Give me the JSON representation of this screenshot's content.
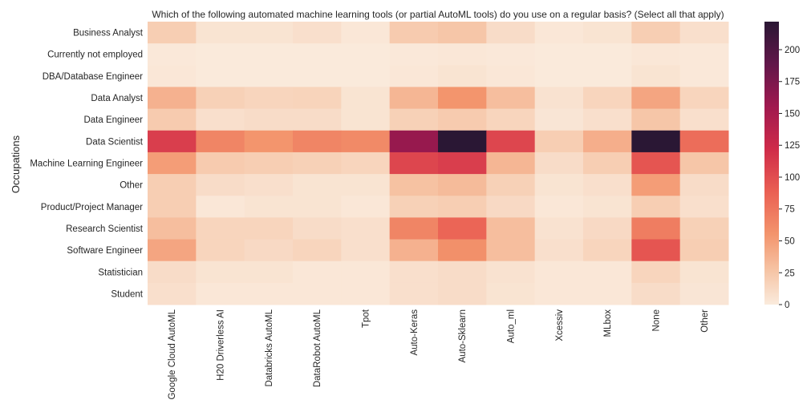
{
  "chart_data": {
    "type": "heatmap",
    "title": "Which of the following automated machine learning tools (or partial AutoML tools) do you use on a regular basis?  (Select all that apply)",
    "xlabel": "",
    "ylabel": "Occupations",
    "x_categories": [
      "Google Cloud AutoML",
      "H20 Driverless AI",
      "Databricks AutoML",
      "DataRobot AutoML",
      "Tpot",
      "Auto-Keras",
      "Auto-Sklearn",
      "Auto_ml",
      "Xcessiv",
      "MLbox",
      "None",
      "Other"
    ],
    "y_categories": [
      "Business Analyst",
      "Currently not employed",
      "DBA/Database Engineer",
      "Data Analyst",
      "Data Engineer",
      "Data Scientist",
      "Machine Learning Engineer",
      "Other",
      "Product/Project Manager",
      "Research Scientist",
      "Software Engineer",
      "Statistician",
      "Student"
    ],
    "values": [
      [
        20,
        5,
        5,
        8,
        3,
        22,
        25,
        10,
        3,
        5,
        20,
        8
      ],
      [
        2,
        1,
        1,
        1,
        1,
        2,
        3,
        2,
        1,
        1,
        3,
        2
      ],
      [
        3,
        1,
        1,
        1,
        1,
        3,
        5,
        3,
        1,
        1,
        5,
        2
      ],
      [
        38,
        18,
        15,
        16,
        5,
        35,
        55,
        30,
        6,
        15,
        45,
        15
      ],
      [
        22,
        8,
        10,
        10,
        5,
        18,
        22,
        15,
        4,
        8,
        25,
        8
      ],
      [
        110,
        65,
        55,
        65,
        62,
        160,
        222,
        105,
        20,
        40,
        222,
        80
      ],
      [
        50,
        22,
        20,
        18,
        15,
        105,
        110,
        35,
        10,
        20,
        95,
        25
      ],
      [
        20,
        10,
        8,
        5,
        5,
        28,
        32,
        18,
        5,
        8,
        50,
        10
      ],
      [
        20,
        3,
        5,
        5,
        3,
        18,
        20,
        12,
        3,
        5,
        20,
        8
      ],
      [
        30,
        15,
        15,
        10,
        8,
        65,
        85,
        30,
        6,
        12,
        70,
        18
      ],
      [
        45,
        15,
        12,
        15,
        8,
        38,
        58,
        30,
        8,
        15,
        95,
        20
      ],
      [
        10,
        5,
        5,
        3,
        3,
        8,
        10,
        6,
        3,
        3,
        15,
        5
      ],
      [
        8,
        3,
        3,
        3,
        3,
        8,
        10,
        5,
        3,
        3,
        10,
        4
      ]
    ],
    "colorbar": {
      "min": 0,
      "max": 222,
      "ticks": [
        0,
        25,
        50,
        75,
        100,
        125,
        150,
        175,
        200
      ]
    },
    "colormap": "rocket_r",
    "grid": false,
    "legend": "colorbar-right"
  }
}
